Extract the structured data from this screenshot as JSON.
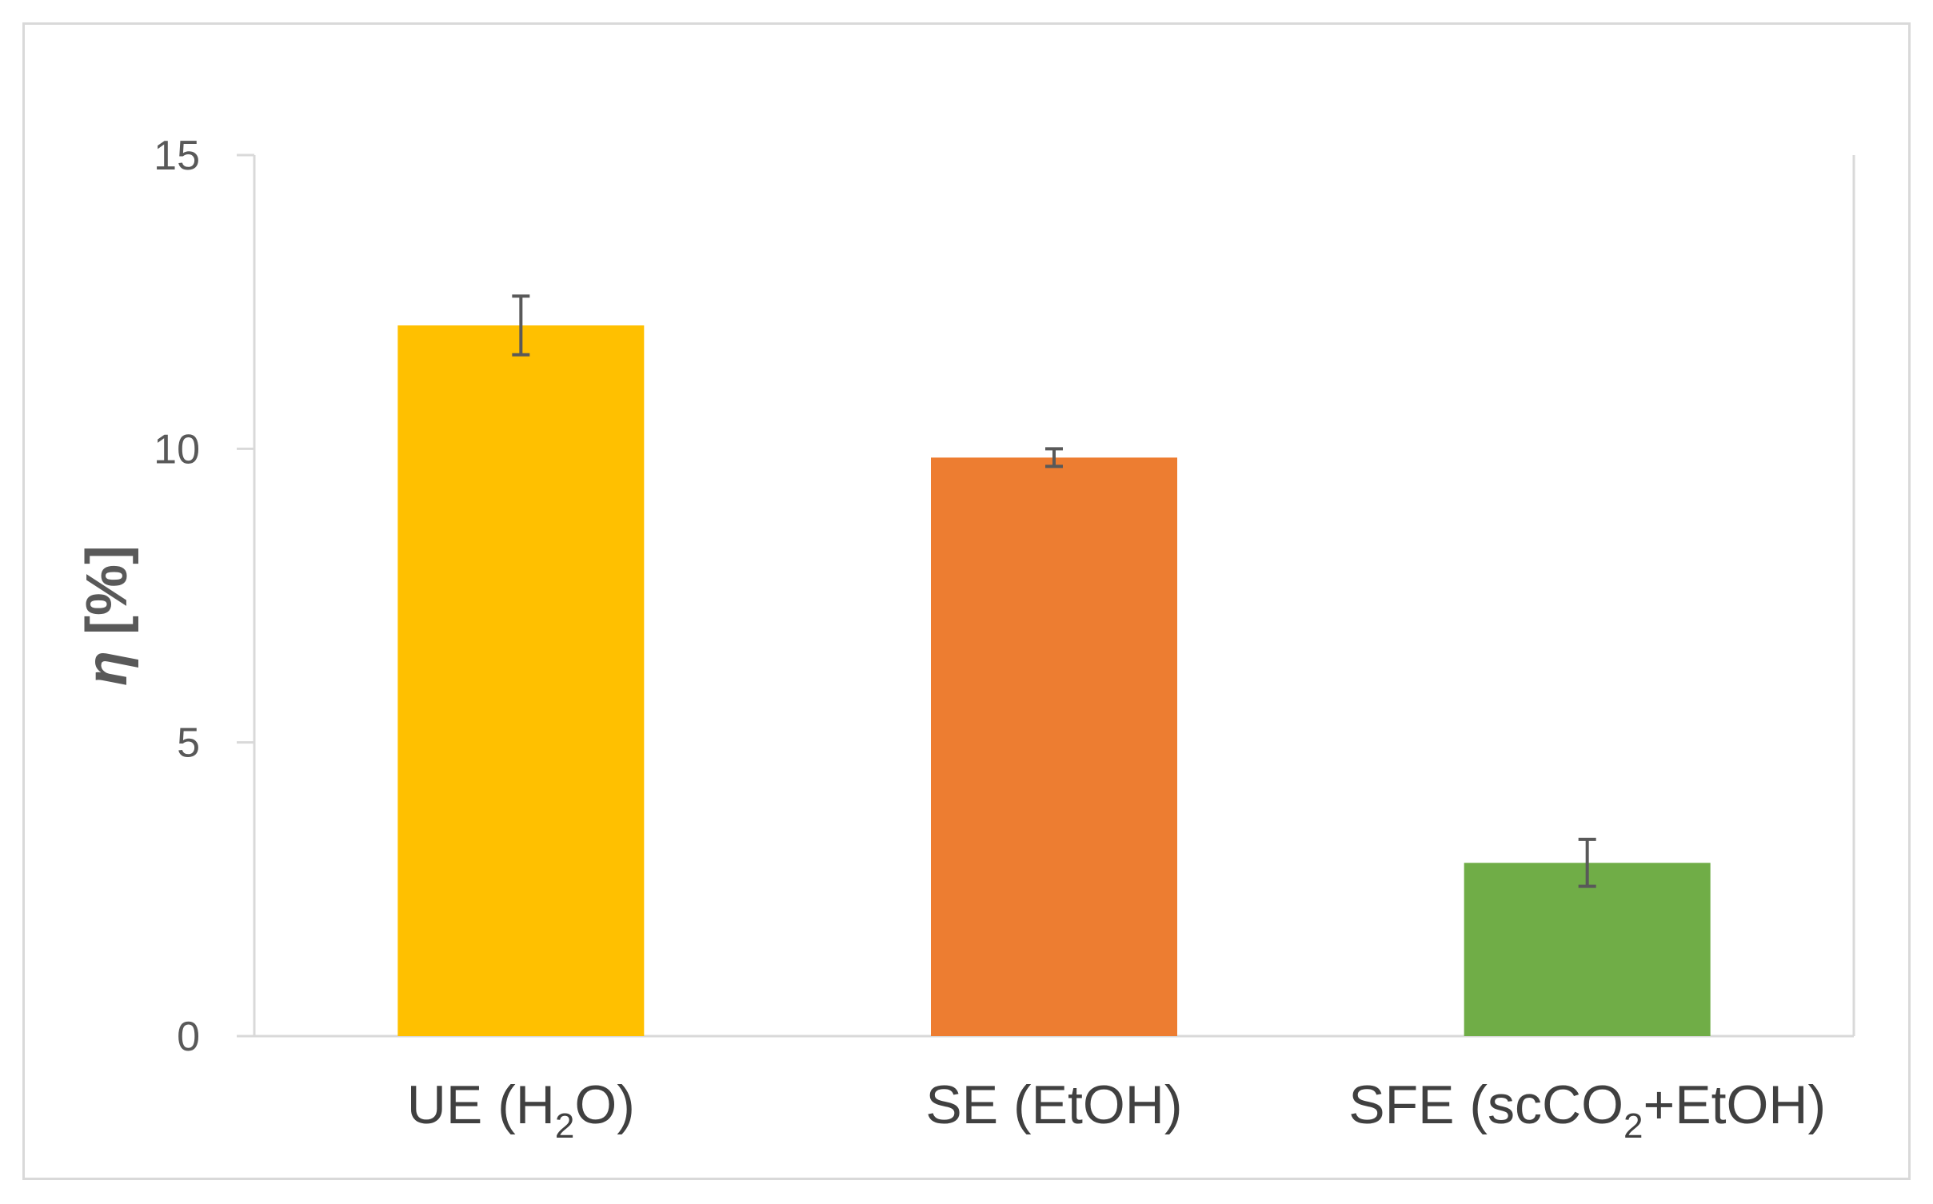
{
  "chart_data": {
    "type": "bar",
    "categories": [
      {
        "main": "UE (H",
        "sub": "2",
        "tail": "O)"
      },
      {
        "main": "SE (EtOH)",
        "sub": "",
        "tail": ""
      },
      {
        "main": "SFE (scCO",
        "sub": "2",
        "tail": "+EtOH)"
      }
    ],
    "values": [
      12.1,
      9.85,
      2.95
    ],
    "errors": [
      0.5,
      0.15,
      0.4
    ],
    "colors": [
      "#ffc000",
      "#ed7d31",
      "#70ad47"
    ],
    "ylabel": {
      "symbol": "η",
      "unit": " [%]"
    },
    "ylim": [
      0,
      15
    ],
    "yticks": [
      "0",
      "5",
      "10",
      "15"
    ],
    "grid": false
  }
}
